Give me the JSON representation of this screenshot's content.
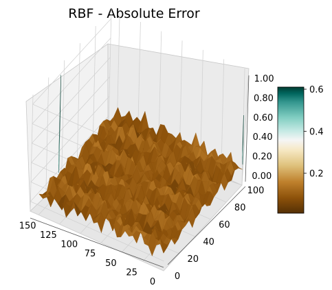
{
  "chart_data": {
    "type": "surface3d",
    "title": "RBF - Absolute Error",
    "colormap": "BrBG",
    "x_axis": {
      "ticks": [
        0,
        25,
        50,
        75,
        100,
        125,
        150
      ],
      "range": [
        0,
        160
      ]
    },
    "y_axis": {
      "ticks": [
        0,
        20,
        40,
        60,
        80,
        100
      ],
      "range": [
        0,
        100
      ]
    },
    "z_axis": {
      "ticks": [
        "0.00",
        "0.20",
        "0.40",
        "0.60",
        "0.80",
        "1.00"
      ],
      "range": [
        -0.1,
        1.1
      ]
    },
    "colorbar": {
      "ticks": [
        "0.2",
        "0.4",
        "0.6"
      ],
      "range": [
        0.01,
        0.61
      ]
    },
    "grid": true,
    "surface_summary": {
      "typical_error_range": [
        0.0,
        0.25
      ],
      "peaks": [
        {
          "x": 150,
          "y": 25,
          "z": 1.12,
          "label": "spike near x=150, y=25"
        },
        {
          "x": 0,
          "y": 100,
          "z": 0.62,
          "label": "spike near x=0, y=100"
        }
      ]
    }
  }
}
